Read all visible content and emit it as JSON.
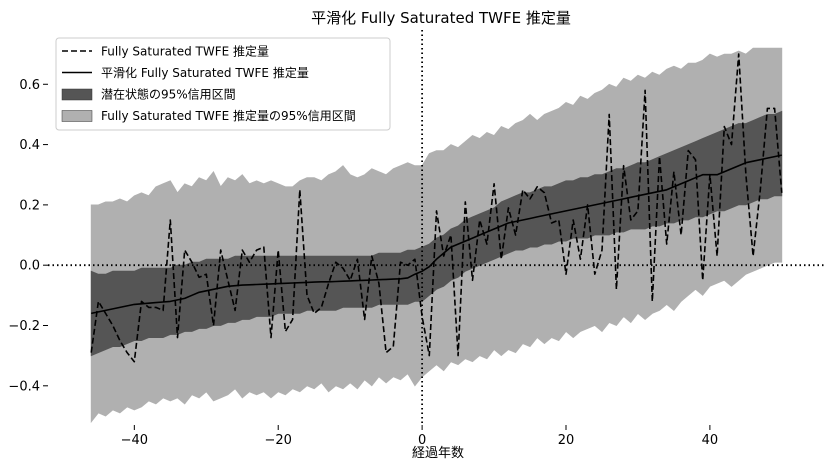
{
  "chart_data": {
    "type": "line",
    "title": "平滑化 Fully Saturated TWFE 推定量",
    "xlabel": "経過年数",
    "ylabel": "",
    "xlim": [
      -52,
      56
    ],
    "ylim": [
      -0.53,
      0.78
    ],
    "xticks": [
      -40,
      -20,
      0,
      20,
      40
    ],
    "xtick_labels": [
      "−40",
      "−20",
      "0",
      "20",
      "40"
    ],
    "yticks": [
      -0.4,
      -0.2,
      0.0,
      0.2,
      0.4,
      0.6
    ],
    "ytick_labels": [
      "−0.4",
      "−0.2",
      "0.0",
      "0.2",
      "0.4",
      "0.6"
    ],
    "reference_lines": {
      "x": 0,
      "y": 0,
      "style": "dotted"
    },
    "grid": false,
    "legend_position": "top-left",
    "legend": [
      {
        "label": "Fully Saturated TWFE 推定量",
        "kind": "dashed-line",
        "color": "#000000"
      },
      {
        "label": "平滑化 Fully Saturated TWFE 推定量",
        "kind": "solid-line",
        "color": "#000000"
      },
      {
        "label": "潜在状態の95%信用区間",
        "kind": "patch",
        "color": "#555555"
      },
      {
        "label": "Fully Saturated TWFE 推定量の95%信用区間",
        "kind": "patch",
        "color": "#b0b0b0"
      }
    ],
    "x": [
      -46,
      -45,
      -44,
      -43,
      -42,
      -41,
      -40,
      -39,
      -38,
      -37,
      -36,
      -35,
      -34,
      -33,
      -32,
      -31,
      -30,
      -29,
      -28,
      -27,
      -26,
      -25,
      -24,
      -23,
      -22,
      -21,
      -20,
      -19,
      -18,
      -17,
      -16,
      -15,
      -14,
      -13,
      -12,
      -11,
      -10,
      -9,
      -8,
      -7,
      -6,
      -5,
      -4,
      -3,
      -2,
      -1,
      0,
      1,
      2,
      3,
      4,
      5,
      6,
      7,
      8,
      9,
      10,
      11,
      12,
      13,
      14,
      15,
      16,
      17,
      18,
      19,
      20,
      21,
      22,
      23,
      24,
      25,
      26,
      27,
      28,
      29,
      30,
      31,
      32,
      33,
      34,
      35,
      36,
      37,
      38,
      39,
      40,
      41,
      42,
      43,
      44,
      45,
      46,
      47,
      48,
      49,
      50
    ],
    "series": [
      {
        "name": "Fully Saturated TWFE 推定量",
        "style": "dashed",
        "values": [
          -0.29,
          -0.12,
          -0.16,
          -0.2,
          -0.25,
          -0.29,
          -0.32,
          -0.12,
          -0.14,
          -0.14,
          -0.15,
          0.15,
          -0.24,
          0.05,
          0.01,
          -0.04,
          -0.03,
          -0.2,
          0.05,
          -0.05,
          -0.15,
          0.05,
          0.01,
          0.05,
          0.06,
          -0.24,
          0.05,
          -0.22,
          -0.18,
          0.25,
          -0.1,
          -0.16,
          -0.14,
          -0.06,
          0.01,
          -0.01,
          -0.05,
          0.02,
          -0.18,
          0.03,
          -0.06,
          -0.29,
          -0.27,
          0.01,
          0.0,
          0.02,
          -0.17,
          -0.3,
          0.18,
          0.03,
          0.1,
          -0.3,
          0.21,
          -0.05,
          0.15,
          0.07,
          0.27,
          0.02,
          0.19,
          0.1,
          0.25,
          0.22,
          0.26,
          0.24,
          0.14,
          0.15,
          -0.03,
          0.15,
          0.02,
          0.2,
          -0.03,
          0.05,
          0.5,
          -0.08,
          0.33,
          0.15,
          0.18,
          0.58,
          -0.12,
          0.36,
          0.07,
          0.31,
          0.1,
          0.38,
          0.35,
          -0.05,
          0.3,
          0.03,
          0.46,
          0.4,
          0.7,
          0.3,
          0.03,
          0.25,
          0.52,
          0.52,
          0.24
        ]
      },
      {
        "name": "平滑化 Fully Saturated TWFE 推定量",
        "style": "solid",
        "values": [
          -0.16,
          -0.155,
          -0.15,
          -0.145,
          -0.14,
          -0.135,
          -0.13,
          -0.128,
          -0.126,
          -0.124,
          -0.122,
          -0.12,
          -0.115,
          -0.11,
          -0.1,
          -0.09,
          -0.085,
          -0.08,
          -0.075,
          -0.07,
          -0.068,
          -0.066,
          -0.065,
          -0.064,
          -0.063,
          -0.062,
          -0.061,
          -0.06,
          -0.059,
          -0.058,
          -0.057,
          -0.056,
          -0.055,
          -0.055,
          -0.054,
          -0.053,
          -0.052,
          -0.051,
          -0.05,
          -0.049,
          -0.048,
          -0.047,
          -0.046,
          -0.045,
          -0.042,
          -0.03,
          -0.02,
          -0.005,
          0.02,
          0.04,
          0.06,
          0.07,
          0.08,
          0.09,
          0.1,
          0.11,
          0.12,
          0.13,
          0.14,
          0.145,
          0.15,
          0.155,
          0.16,
          0.165,
          0.17,
          0.175,
          0.18,
          0.185,
          0.19,
          0.195,
          0.2,
          0.205,
          0.21,
          0.215,
          0.22,
          0.225,
          0.23,
          0.235,
          0.24,
          0.245,
          0.25,
          0.26,
          0.27,
          0.28,
          0.29,
          0.3,
          0.3,
          0.3,
          0.31,
          0.32,
          0.33,
          0.34,
          0.345,
          0.35,
          0.355,
          0.36,
          0.365
        ]
      }
    ],
    "bands": [
      {
        "name": "Fully Saturated TWFE 推定量の95%信用区間",
        "color": "#b0b0b0",
        "lower": [
          -0.52,
          -0.49,
          -0.5,
          -0.48,
          -0.49,
          -0.47,
          -0.48,
          -0.47,
          -0.45,
          -0.46,
          -0.44,
          -0.45,
          -0.44,
          -0.46,
          -0.43,
          -0.44,
          -0.42,
          -0.45,
          -0.44,
          -0.43,
          -0.41,
          -0.44,
          -0.42,
          -0.43,
          -0.42,
          -0.44,
          -0.42,
          -0.43,
          -0.41,
          -0.42,
          -0.4,
          -0.41,
          -0.39,
          -0.42,
          -0.4,
          -0.41,
          -0.39,
          -0.41,
          -0.38,
          -0.4,
          -0.37,
          -0.39,
          -0.37,
          -0.38,
          -0.36,
          -0.4,
          -0.37,
          -0.35,
          -0.33,
          -0.35,
          -0.32,
          -0.33,
          -0.31,
          -0.32,
          -0.3,
          -0.31,
          -0.28,
          -0.3,
          -0.28,
          -0.29,
          -0.26,
          -0.27,
          -0.24,
          -0.26,
          -0.24,
          -0.25,
          -0.22,
          -0.24,
          -0.22,
          -0.21,
          -0.2,
          -0.22,
          -0.19,
          -0.2,
          -0.17,
          -0.19,
          -0.16,
          -0.18,
          -0.16,
          -0.15,
          -0.13,
          -0.15,
          -0.12,
          -0.1,
          -0.08,
          -0.1,
          -0.07,
          -0.06,
          -0.05,
          -0.07,
          -0.05,
          -0.03,
          -0.02,
          -0.01,
          0.0,
          0.01,
          0.01
        ],
        "upper": [
          0.2,
          0.2,
          0.21,
          0.21,
          0.22,
          0.21,
          0.23,
          0.24,
          0.23,
          0.26,
          0.27,
          0.28,
          0.24,
          0.27,
          0.26,
          0.29,
          0.28,
          0.31,
          0.26,
          0.29,
          0.28,
          0.3,
          0.27,
          0.28,
          0.27,
          0.28,
          0.27,
          0.26,
          0.26,
          0.28,
          0.29,
          0.29,
          0.28,
          0.3,
          0.31,
          0.33,
          0.3,
          0.29,
          0.3,
          0.32,
          0.31,
          0.3,
          0.32,
          0.33,
          0.34,
          0.33,
          0.33,
          0.37,
          0.38,
          0.38,
          0.4,
          0.39,
          0.41,
          0.43,
          0.42,
          0.44,
          0.43,
          0.46,
          0.45,
          0.47,
          0.48,
          0.5,
          0.48,
          0.5,
          0.51,
          0.52,
          0.54,
          0.53,
          0.56,
          0.55,
          0.57,
          0.58,
          0.6,
          0.59,
          0.62,
          0.61,
          0.63,
          0.62,
          0.64,
          0.63,
          0.65,
          0.66,
          0.65,
          0.67,
          0.67,
          0.68,
          0.7,
          0.69,
          0.7,
          0.7,
          0.71,
          0.7,
          0.72,
          0.72,
          0.72,
          0.72,
          0.72
        ]
      },
      {
        "name": "潜在状態の95%信用区間",
        "color": "#555555",
        "lower": [
          -0.3,
          -0.29,
          -0.28,
          -0.27,
          -0.27,
          -0.26,
          -0.25,
          -0.25,
          -0.24,
          -0.24,
          -0.24,
          -0.23,
          -0.23,
          -0.22,
          -0.22,
          -0.21,
          -0.21,
          -0.2,
          -0.2,
          -0.19,
          -0.19,
          -0.18,
          -0.18,
          -0.17,
          -0.17,
          -0.17,
          -0.16,
          -0.16,
          -0.16,
          -0.16,
          -0.15,
          -0.15,
          -0.15,
          -0.15,
          -0.15,
          -0.14,
          -0.14,
          -0.14,
          -0.14,
          -0.14,
          -0.13,
          -0.13,
          -0.13,
          -0.13,
          -0.13,
          -0.12,
          -0.12,
          -0.1,
          -0.08,
          -0.07,
          -0.05,
          -0.04,
          -0.02,
          -0.01,
          0.0,
          0.01,
          0.02,
          0.03,
          0.04,
          0.05,
          0.05,
          0.06,
          0.06,
          0.07,
          0.07,
          0.08,
          0.08,
          0.09,
          0.09,
          0.09,
          0.1,
          0.1,
          0.1,
          0.11,
          0.11,
          0.12,
          0.12,
          0.12,
          0.13,
          0.13,
          0.14,
          0.14,
          0.15,
          0.15,
          0.16,
          0.16,
          0.17,
          0.18,
          0.18,
          0.19,
          0.2,
          0.2,
          0.21,
          0.22,
          0.22,
          0.23,
          0.23
        ],
        "upper": [
          -0.02,
          -0.03,
          -0.03,
          -0.02,
          -0.02,
          -0.02,
          -0.02,
          -0.01,
          -0.01,
          -0.01,
          -0.01,
          -0.01,
          0.0,
          0.0,
          0.01,
          0.01,
          0.02,
          0.02,
          0.02,
          0.02,
          0.03,
          0.03,
          0.03,
          0.03,
          0.03,
          0.03,
          0.03,
          0.03,
          0.03,
          0.03,
          0.03,
          0.03,
          0.03,
          0.03,
          0.03,
          0.03,
          0.03,
          0.03,
          0.03,
          0.03,
          0.04,
          0.04,
          0.04,
          0.04,
          0.05,
          0.05,
          0.06,
          0.07,
          0.09,
          0.1,
          0.12,
          0.13,
          0.15,
          0.16,
          0.17,
          0.18,
          0.19,
          0.21,
          0.22,
          0.23,
          0.24,
          0.24,
          0.25,
          0.26,
          0.26,
          0.27,
          0.28,
          0.28,
          0.29,
          0.29,
          0.3,
          0.3,
          0.31,
          0.32,
          0.32,
          0.33,
          0.34,
          0.34,
          0.35,
          0.36,
          0.37,
          0.38,
          0.39,
          0.4,
          0.41,
          0.42,
          0.43,
          0.44,
          0.45,
          0.46,
          0.47,
          0.47,
          0.48,
          0.49,
          0.5,
          0.5,
          0.51
        ]
      }
    ]
  }
}
